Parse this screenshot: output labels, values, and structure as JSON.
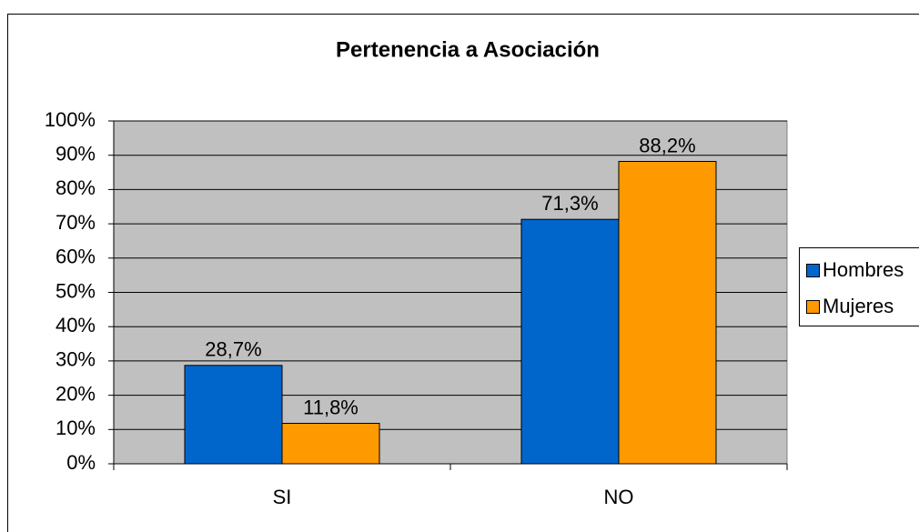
{
  "chart_data": {
    "type": "bar",
    "title": "Pertenencia a Asociación",
    "categories": [
      "SI",
      "NO"
    ],
    "series": [
      {
        "name": "Hombres",
        "color": "#0066cc",
        "values": [
          28.7,
          71.3
        ],
        "value_labels": [
          "28,7%",
          "71,3%"
        ]
      },
      {
        "name": "Mujeres",
        "color": "#ff9900",
        "values": [
          11.8,
          88.2
        ],
        "value_labels": [
          "11,8%",
          "88,2%"
        ]
      }
    ],
    "ylim": [
      0,
      100
    ],
    "yticks": [
      {
        "value": 0,
        "label": "0%"
      },
      {
        "value": 10,
        "label": "10%"
      },
      {
        "value": 20,
        "label": "20%"
      },
      {
        "value": 30,
        "label": "30%"
      },
      {
        "value": 40,
        "label": "40%"
      },
      {
        "value": 50,
        "label": "50%"
      },
      {
        "value": 60,
        "label": "60%"
      },
      {
        "value": 70,
        "label": "70%"
      },
      {
        "value": 80,
        "label": "80%"
      },
      {
        "value": 90,
        "label": "90%"
      },
      {
        "value": 100,
        "label": "100%"
      }
    ],
    "grid": true,
    "legend": "right"
  }
}
